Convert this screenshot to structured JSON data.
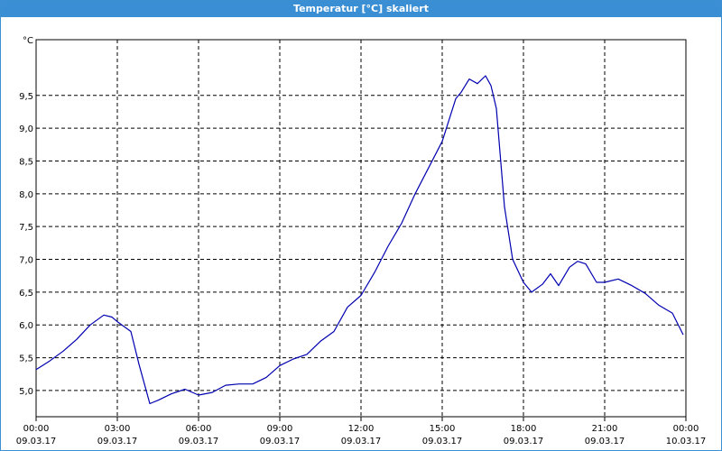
{
  "window": {
    "title": "Temperatur [°C] skaliert"
  },
  "chart_data": {
    "type": "line",
    "title": "Temperatur [°C] skaliert",
    "ylabel": "°C",
    "xlabel": "",
    "grid": true,
    "legend": "none",
    "color": "#0000b0",
    "ylim": [
      4.6,
      10.35
    ],
    "xlim": [
      0,
      24
    ],
    "y_ticks": [
      "5,0",
      "5,5",
      "6,0",
      "6,5",
      "7,0",
      "7,5",
      "8,0",
      "8,5",
      "9,0",
      "9,5"
    ],
    "x_ticks": [
      {
        "time": "00:00",
        "date": "09.03.17"
      },
      {
        "time": "03:00",
        "date": "09.03.17"
      },
      {
        "time": "06:00",
        "date": "09.03.17"
      },
      {
        "time": "09:00",
        "date": "09.03.17"
      },
      {
        "time": "12:00",
        "date": "09.03.17"
      },
      {
        "time": "15:00",
        "date": "09.03.17"
      },
      {
        "time": "18:00",
        "date": "09.03.17"
      },
      {
        "time": "21:00",
        "date": "09.03.17"
      },
      {
        "time": "00:00",
        "date": "10.03.17"
      }
    ],
    "series": [
      {
        "x": [
          0,
          0.5,
          1,
          1.5,
          2,
          2.5,
          2.8,
          3,
          3.5,
          3.8,
          4.2,
          4.5,
          5,
          5.5,
          6,
          6.5,
          7,
          7.5,
          8,
          8.5,
          9,
          9.5,
          10,
          10.5,
          11,
          11.5,
          12,
          12.5,
          13,
          13.5,
          14,
          14.5,
          15,
          15.5,
          15.7,
          16,
          16.3,
          16.6,
          16.8,
          17,
          17.3,
          17.6,
          18,
          18.3,
          18.7,
          19,
          19.3,
          19.7,
          20,
          20.3,
          20.7,
          21,
          21.5,
          22,
          22.5,
          23,
          23.5,
          23.9
        ],
        "y": [
          5.32,
          5.45,
          5.6,
          5.78,
          6.0,
          6.15,
          6.12,
          6.05,
          5.9,
          5.4,
          4.8,
          4.85,
          4.95,
          5.02,
          4.93,
          4.97,
          5.08,
          5.1,
          5.1,
          5.2,
          5.38,
          5.48,
          5.55,
          5.75,
          5.9,
          6.27,
          6.45,
          6.8,
          7.2,
          7.55,
          8.0,
          8.4,
          8.8,
          9.45,
          9.55,
          9.75,
          9.68,
          9.8,
          9.65,
          9.3,
          7.8,
          7.0,
          6.65,
          6.5,
          6.62,
          6.78,
          6.6,
          6.88,
          6.97,
          6.93,
          6.65,
          6.65,
          6.7,
          6.6,
          6.48,
          6.3,
          6.18,
          5.85
        ]
      }
    ]
  }
}
